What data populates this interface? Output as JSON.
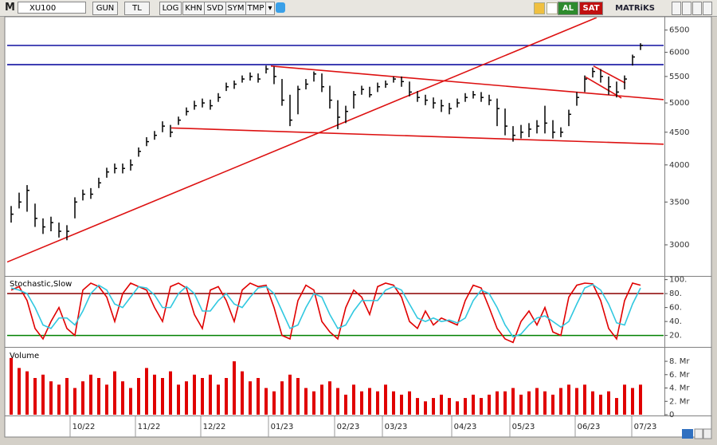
{
  "toolbar": {
    "symbol_prefix": "M",
    "symbol": "XU100",
    "buttons": [
      "GUN",
      "TL",
      "LOG",
      "KHN",
      "SVD",
      "SYM",
      "TMP"
    ],
    "buy": "AL",
    "sell": "SAT",
    "brand": "MATRiKS"
  },
  "chart_data": [
    {
      "type": "ohlc",
      "color": "#000000",
      "log_scale": true,
      "xlim": [
        0,
        82.4
      ],
      "ylim": [
        2690,
        6800
      ],
      "yticks": [
        3000,
        3500,
        4000,
        4500,
        5000,
        5500,
        6000,
        6500
      ],
      "close": [
        3350,
        3500,
        3650,
        3300,
        3200,
        3250,
        3150,
        3150,
        3500,
        3600,
        3600,
        3750,
        3900,
        3950,
        3950,
        4000,
        4200,
        4350,
        4450,
        4600,
        4500,
        4700,
        4850,
        4950,
        5000,
        4950,
        5100,
        5300,
        5350,
        5450,
        5500,
        5450,
        5650,
        5500,
        5050,
        4700,
        5250,
        5350,
        5550,
        5300,
        5050,
        4750,
        4850,
        5150,
        5250,
        5150,
        5300,
        5350,
        5450,
        5400,
        5200,
        5100,
        5050,
        5000,
        4950,
        4900,
        5000,
        5100,
        5150,
        5100,
        5050,
        4900,
        4600,
        4450,
        4500,
        4550,
        4600,
        4650,
        4500,
        4500,
        4800,
        5100,
        5450,
        5600,
        5500,
        5300,
        5200,
        5450,
        5900,
        6150
      ],
      "high": [
        3450,
        3620,
        3720,
        3480,
        3300,
        3320,
        3250,
        3220,
        3560,
        3660,
        3680,
        3820,
        3960,
        4020,
        4020,
        4080,
        4260,
        4420,
        4520,
        4680,
        4620,
        4760,
        4920,
        5040,
        5080,
        5060,
        5180,
        5380,
        5420,
        5520,
        5580,
        5560,
        5720,
        5700,
        5450,
        5150,
        5320,
        5450,
        5600,
        5560,
        5320,
        5050,
        4950,
        5220,
        5320,
        5300,
        5380,
        5420,
        5500,
        5500,
        5400,
        5220,
        5150,
        5100,
        5060,
        5000,
        5080,
        5180,
        5220,
        5200,
        5150,
        5080,
        4900,
        4600,
        4620,
        4650,
        4700,
        4950,
        4700,
        4580,
        4880,
        5200,
        5520,
        5680,
        5650,
        5500,
        5400,
        5520,
        5950,
        6200
      ],
      "low": [
        3250,
        3420,
        3380,
        3200,
        3120,
        3150,
        3080,
        3050,
        3300,
        3520,
        3540,
        3680,
        3820,
        3880,
        3880,
        3920,
        4120,
        4280,
        4380,
        4500,
        4420,
        4620,
        4780,
        4880,
        4920,
        4880,
        5020,
        5220,
        5260,
        5380,
        5420,
        5380,
        5560,
        5350,
        4950,
        4600,
        4800,
        5250,
        5400,
        5200,
        4900,
        4550,
        4650,
        4900,
        5150,
        5100,
        5200,
        5280,
        5380,
        5300,
        5120,
        5020,
        4960,
        4900,
        4840,
        4800,
        4920,
        5020,
        5080,
        5020,
        4960,
        4600,
        4450,
        4350,
        4400,
        4420,
        4480,
        4480,
        4400,
        4420,
        4600,
        4950,
        5200,
        5480,
        5380,
        5150,
        5100,
        5250,
        5720,
        6050
      ],
      "lines": [
        {
          "color": "#1010a0",
          "x": [
            0,
            82.4
          ],
          "y": [
            6150,
            6150
          ]
        },
        {
          "color": "#1010a0",
          "x": [
            0,
            82.4
          ],
          "y": [
            5740,
            5740
          ]
        },
        {
          "color": "#dd1111",
          "x": [
            0,
            74
          ],
          "y": [
            2820,
            6800
          ]
        },
        {
          "color": "#dd1111",
          "x": [
            33.1,
            82.4
          ],
          "y": [
            5710,
            5060
          ]
        },
        {
          "color": "#dd1111",
          "x": [
            20.6,
            82.4
          ],
          "y": [
            4570,
            4310
          ]
        },
        {
          "color": "#dd1111",
          "x": [
            73.6,
            77.6
          ],
          "y": [
            5710,
            5370
          ]
        },
        {
          "color": "#dd1111",
          "x": [
            72.6,
            77.1
          ],
          "y": [
            5490,
            5090
          ]
        }
      ]
    },
    {
      "type": "line",
      "title": "Stochastic,Slow",
      "xlim": [
        0,
        82.4
      ],
      "ylim": [
        7,
        103
      ],
      "yticks": [
        {
          "value": 20,
          "label": "20."
        },
        {
          "value": 40,
          "label": "40."
        },
        {
          "value": 60,
          "label": "60."
        },
        {
          "value": 80,
          "label": "80."
        },
        {
          "value": 100,
          "label": "100."
        }
      ],
      "ref_lines": [
        {
          "value": 80,
          "color": "#8b0000"
        },
        {
          "value": 20,
          "color": "#008000"
        }
      ],
      "series": [
        {
          "color": "#e00000",
          "values": [
            85,
            90,
            70,
            30,
            15,
            40,
            60,
            30,
            20,
            85,
            95,
            90,
            75,
            40,
            80,
            95,
            90,
            85,
            60,
            40,
            90,
            95,
            88,
            50,
            30,
            85,
            90,
            70,
            40,
            85,
            95,
            90,
            92,
            60,
            20,
            15,
            70,
            92,
            85,
            40,
            25,
            15,
            60,
            85,
            75,
            50,
            90,
            95,
            92,
            75,
            40,
            30,
            55,
            35,
            45,
            40,
            35,
            70,
            92,
            88,
            60,
            30,
            15,
            10,
            40,
            55,
            35,
            60,
            25,
            20,
            75,
            92,
            95,
            94,
            70,
            30,
            15,
            70,
            95,
            92
          ]
        },
        {
          "color": "#30c8e0",
          "values": [
            88,
            85,
            80,
            60,
            35,
            30,
            45,
            45,
            35,
            55,
            80,
            92,
            85,
            65,
            60,
            75,
            90,
            88,
            78,
            60,
            60,
            80,
            90,
            80,
            55,
            55,
            70,
            80,
            65,
            60,
            75,
            88,
            90,
            80,
            55,
            30,
            35,
            60,
            80,
            75,
            50,
            30,
            35,
            55,
            70,
            70,
            70,
            85,
            90,
            85,
            65,
            45,
            40,
            45,
            40,
            42,
            38,
            45,
            70,
            85,
            80,
            60,
            35,
            18,
            22,
            35,
            45,
            48,
            40,
            32,
            40,
            65,
            88,
            93,
            85,
            65,
            38,
            35,
            65,
            88
          ]
        }
      ]
    },
    {
      "type": "bar",
      "title": "Volume",
      "color": "#e00000",
      "xlim": [
        0,
        82.4
      ],
      "ylim": [
        0,
        9.8
      ],
      "yticks": [
        0,
        {
          "value": 2,
          "label": "2. Mr"
        },
        {
          "value": 4,
          "label": "4. Mr"
        },
        {
          "value": 6,
          "label": "6. Mr"
        },
        {
          "value": 8,
          "label": "8. Mr"
        }
      ],
      "values": [
        8.5,
        7.0,
        6.5,
        5.5,
        6.0,
        5.0,
        4.5,
        5.5,
        4.0,
        5.0,
        6.0,
        5.5,
        4.5,
        6.5,
        5.0,
        4.0,
        5.5,
        7.0,
        6.0,
        5.5,
        6.5,
        4.5,
        5.0,
        6.0,
        5.5,
        6.0,
        4.5,
        5.5,
        8.0,
        6.5,
        5.0,
        5.5,
        4.0,
        3.5,
        5.0,
        6.0,
        5.5,
        4.0,
        3.5,
        4.5,
        5.0,
        4.0,
        3.0,
        4.5,
        3.5,
        4.0,
        3.5,
        4.5,
        3.5,
        3.0,
        3.5,
        2.5,
        2.0,
        2.5,
        3.0,
        2.5,
        2.0,
        2.5,
        3.0,
        2.5,
        3.0,
        3.5,
        3.5,
        4.0,
        3.0,
        3.5,
        4.0,
        3.5,
        3.0,
        4.0,
        4.5,
        4.0,
        4.5,
        3.5,
        3.0,
        3.5,
        2.5,
        4.5,
        4.0,
        4.5
      ],
      "xticks": [
        {
          "value": 7.9,
          "label": "10/22"
        },
        {
          "value": 16.1,
          "label": "11/22"
        },
        {
          "value": 24.3,
          "label": "12/22"
        },
        {
          "value": 32.8,
          "label": "01/23"
        },
        {
          "value": 41.1,
          "label": "02/23"
        },
        {
          "value": 47.1,
          "label": "03/23"
        },
        {
          "value": 55.8,
          "label": "04/23"
        },
        {
          "value": 63.1,
          "label": "05/23"
        },
        {
          "value": 71.3,
          "label": "06/23"
        },
        {
          "value": 78.4,
          "label": "07/23"
        }
      ]
    }
  ]
}
